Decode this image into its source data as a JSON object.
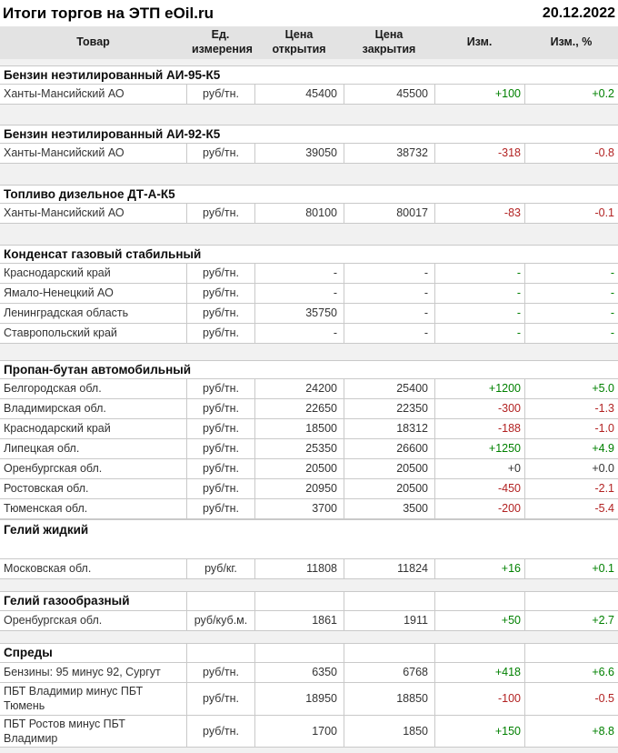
{
  "page": {
    "title": "Итоги торгов на ЭТП eOil.ru",
    "date": "20.12.2022"
  },
  "colors": {
    "positive": "#008000",
    "negative": "#b22222",
    "neutral": "#333333",
    "header_bg": "#e3e3e3",
    "gap_bg": "#f1f1f1",
    "border": "#c9c9c9"
  },
  "table": {
    "columns": [
      {
        "label": "Товар"
      },
      {
        "label": "Ед. измерения"
      },
      {
        "label": "Цена открытия"
      },
      {
        "label": "Цена закрытия"
      },
      {
        "label": "Изм."
      },
      {
        "label": "Изм., %"
      }
    ],
    "sections": [
      {
        "title": "Бензин неэтилированный АИ-95-К5",
        "header_style": "wide",
        "gap_before": 7,
        "rows": [
          {
            "product": "Ханты-Мансийский АО",
            "unit": "руб/тн.",
            "open": "45400",
            "close": "45500",
            "change": "+100",
            "change_pct": "+0.2",
            "trend": "up"
          }
        ]
      },
      {
        "title": "Бензин неэтилированный АИ-92-К5",
        "header_style": "wide",
        "gap_before": 22,
        "rows": [
          {
            "product": "Ханты-Мансийский АО",
            "unit": "руб/тн.",
            "open": "39050",
            "close": "38732",
            "change": "-318",
            "change_pct": "-0.8",
            "trend": "down"
          }
        ]
      },
      {
        "title": "Топливо дизельное ДТ-А-К5",
        "header_style": "wide",
        "gap_before": 23,
        "rows": [
          {
            "product": "Ханты-Мансийский АО",
            "unit": "руб/тн.",
            "open": "80100",
            "close": "80017",
            "change": "-83",
            "change_pct": "-0.1",
            "trend": "down"
          }
        ]
      },
      {
        "title": "Конденсат газовый стабильный",
        "header_style": "wide",
        "gap_before": 23,
        "rows": [
          {
            "product": "Краснодарский край",
            "unit": "руб/тн.",
            "open": "-",
            "close": "-",
            "change": "-",
            "change_pct": "-",
            "trend": "dash"
          },
          {
            "product": "Ямало-Ненецкий АО",
            "unit": "руб/тн.",
            "open": "-",
            "close": "-",
            "change": "-",
            "change_pct": "-",
            "trend": "dash"
          },
          {
            "product": "Ленинградская область",
            "unit": "руб/тн.",
            "open": "35750",
            "close": "-",
            "change": "-",
            "change_pct": "-",
            "trend": "dash"
          },
          {
            "product": "Ставропольский край",
            "unit": "руб/тн.",
            "open": "-",
            "close": "-",
            "change": "-",
            "change_pct": "-",
            "trend": "dash"
          }
        ]
      },
      {
        "title": "Пропан-бутан автомобильный",
        "header_style": "wide",
        "gap_before": 18,
        "rows": [
          {
            "product": "Белгородская обл.",
            "unit": "руб/тн.",
            "open": "24200",
            "close": "25400",
            "change": "+1200",
            "change_pct": "+5.0",
            "trend": "up"
          },
          {
            "product": "Владимирская обл.",
            "unit": "руб/тн.",
            "open": "22650",
            "close": "22350",
            "change": "-300",
            "change_pct": "-1.3",
            "trend": "down"
          },
          {
            "product": "Краснодарский край",
            "unit": "руб/тн.",
            "open": "18500",
            "close": "18312",
            "change": "-188",
            "change_pct": "-1.0",
            "trend": "down"
          },
          {
            "product": "Липецкая обл.",
            "unit": "руб/тн.",
            "open": "25350",
            "close": "26600",
            "change": "+1250",
            "change_pct": "+4.9",
            "trend": "up"
          },
          {
            "product": "Оренбургская обл.",
            "unit": "руб/тн.",
            "open": "20500",
            "close": "20500",
            "change": "+0",
            "change_pct": "+0.0",
            "trend": "zero"
          },
          {
            "product": "Ростовская обл.",
            "unit": "руб/тн.",
            "open": "20950",
            "close": "20500",
            "change": "-450",
            "change_pct": "-2.1",
            "trend": "down"
          },
          {
            "product": "Тюменская обл.",
            "unit": "руб/тн.",
            "open": "3700",
            "close": "3500",
            "change": "-200",
            "change_pct": "-5.4",
            "trend": "down"
          }
        ]
      },
      {
        "title": "Гелий жидкий",
        "header_style": "tall",
        "gap_before": 0,
        "rows": [
          {
            "product": "Московская обл.",
            "unit": "руб/кг.",
            "open": "11808",
            "close": "11824",
            "change": "+16",
            "change_pct": "+0.1",
            "trend": "up"
          }
        ]
      },
      {
        "title": "Гелий газообразный",
        "header_style": "celled",
        "gap_before": 13,
        "rows": [
          {
            "product": "Оренбургская обл.",
            "unit": "руб/куб.м.",
            "open": "1861",
            "close": "1911",
            "change": "+50",
            "change_pct": "+2.7",
            "trend": "up"
          }
        ]
      },
      {
        "title": "Спреды",
        "header_style": "celled",
        "gap_before": 13,
        "rows": [
          {
            "product": "Бензины: 95 минус 92, Сургут",
            "unit": "руб/тн.",
            "open": "6350",
            "close": "6768",
            "change": "+418",
            "change_pct": "+6.6",
            "trend": "up"
          },
          {
            "product": "ПБТ Владимир минус ПБТ Тюмень",
            "unit": "руб/тн.",
            "open": "18950",
            "close": "18850",
            "change": "-100",
            "change_pct": "-0.5",
            "trend": "down"
          },
          {
            "product": "ПБТ Ростов минус ПБТ Владимир",
            "unit": "руб/тн.",
            "open": "1700",
            "close": "1850",
            "change": "+150",
            "change_pct": "+8.8",
            "trend": "up"
          }
        ]
      }
    ]
  }
}
